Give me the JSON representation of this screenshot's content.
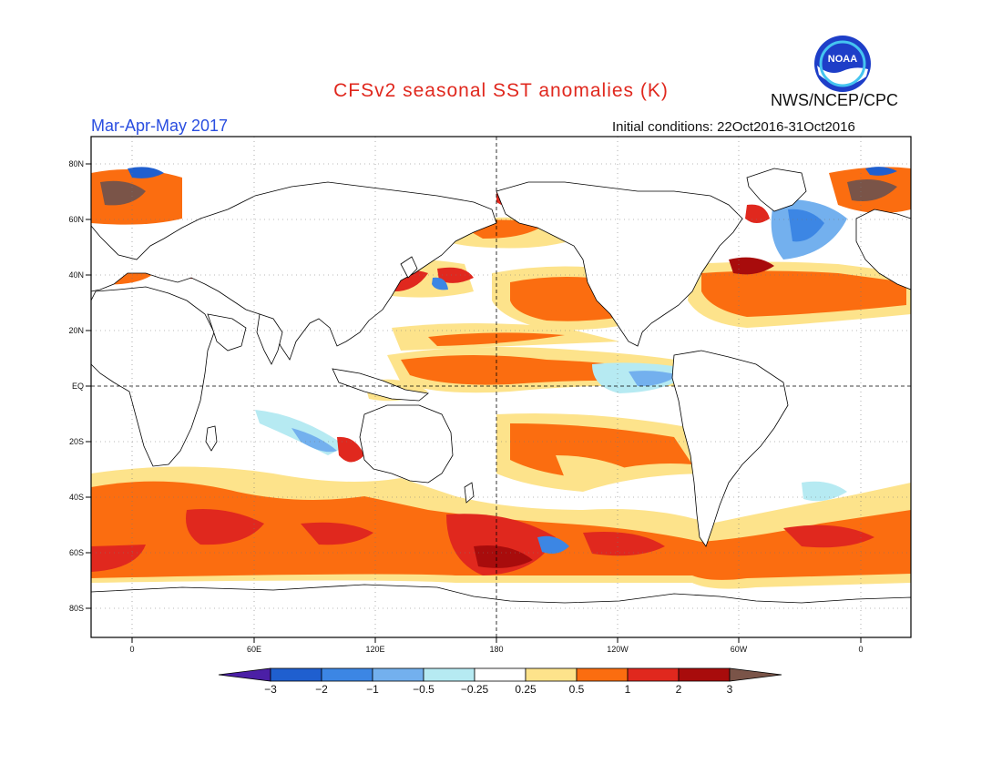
{
  "header": {
    "title": "CFSv2 seasonal SST anomalies (K)",
    "org": "NWS/NCEP/CPC",
    "season": "Mar-Apr-May 2017",
    "initial_conditions": "Initial conditions: 22Oct2016-31Oct2016",
    "logo_text": "NOAA"
  },
  "axes": {
    "lat_labels": [
      "80N",
      "60N",
      "40N",
      "20N",
      "EQ",
      "20S",
      "40S",
      "60S",
      "80S"
    ],
    "lon_labels": [
      "0",
      "60E",
      "120E",
      "180",
      "120W",
      "60W",
      "0"
    ]
  },
  "colorbar": {
    "labels": [
      "-3",
      "-2",
      "-1",
      "-0.5",
      "-0.25",
      "0.25",
      "0.5",
      "1",
      "2",
      "3"
    ],
    "colors": [
      "#4b1fa6",
      "#1f5fcf",
      "#3c86e4",
      "#73b0ee",
      "#b6eaf2",
      "#ffffff",
      "#fde38b",
      "#fb6d10",
      "#e0281e",
      "#a80c0c",
      "#7a5448"
    ]
  }
}
